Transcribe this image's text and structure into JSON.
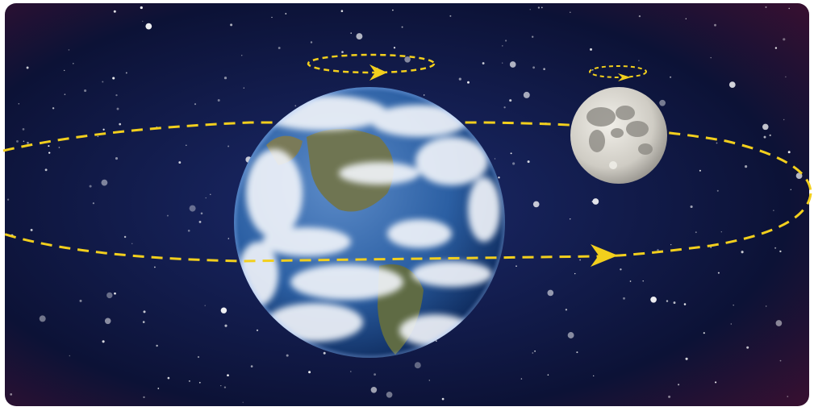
{
  "diagram": {
    "kind": "earth-moon-orbit",
    "bodies": [
      "earth",
      "moon"
    ],
    "paths": [
      {
        "name": "moon-orbit",
        "direction": "counterclockwise"
      },
      {
        "name": "earth-rotation",
        "direction": "counterclockwise"
      },
      {
        "name": "moon-rotation",
        "direction": "counterclockwise"
      }
    ],
    "colors": {
      "space_dark": "#0c1236",
      "space_mid": "#1b2a6b",
      "space_edge": "#3a1030",
      "path": "#f2cf1d",
      "ocean": "#2b5fa3",
      "cloud": "#f3f6fb",
      "land": "#7a7a58",
      "moon": "#cfccc4",
      "moon_dark": "#8d8a84"
    }
  }
}
